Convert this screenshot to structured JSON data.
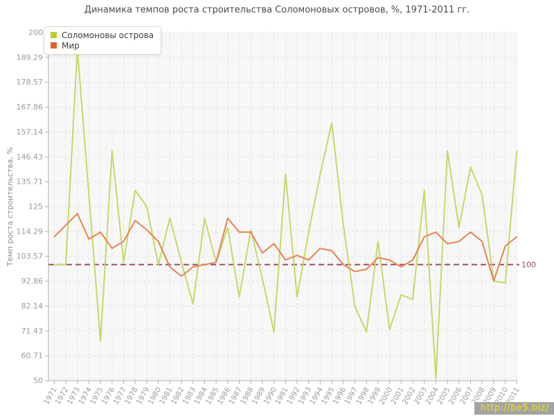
{
  "title": "Динамика темпов роста строительства Соломоновых островов, %, 1971-2011 гг.",
  "legend": {
    "items": [
      {
        "label": "Соломоновы острова",
        "color": "#b2d322"
      },
      {
        "label": "Мир",
        "color": "#e0622b"
      }
    ]
  },
  "y_axis": {
    "title": "Темп роста строительства, %",
    "ticks": [
      "50",
      "60.71",
      "71.43",
      "82.14",
      "92.86",
      "103.57",
      "114.29",
      "125",
      "135.71",
      "146.43",
      "157.14",
      "167.86",
      "178.57",
      "189.29",
      "200"
    ]
  },
  "x_axis": {
    "years": [
      "1971",
      "1972",
      "1973",
      "1974",
      "1975",
      "1976",
      "1977",
      "1978",
      "1979",
      "1980",
      "1981",
      "1982",
      "1983",
      "1984",
      "1985",
      "1986",
      "1987",
      "1988",
      "1989",
      "1990",
      "1991",
      "1992",
      "1993",
      "1994",
      "1995",
      "1996",
      "1997",
      "1998",
      "1999",
      "2000",
      "2001",
      "2002",
      "2003",
      "2004",
      "2005",
      "2006",
      "2007",
      "2008",
      "2009",
      "2010",
      "2011"
    ]
  },
  "reference_line": {
    "value": 100,
    "label": "100",
    "color": "#9e4a5a"
  },
  "watermark": "http://be5.biz/",
  "colors": {
    "solomon_line": "#c3d966",
    "world_line": "#e8824e",
    "grid": "#e1e1e1",
    "plot_bg": "#f7f7f7",
    "axis": "#b0b0b0",
    "tick_text": "#9b9b9b"
  },
  "chart_data": {
    "type": "line",
    "title": "Динамика темпов роста строительства Соломоновых островов, %, 1971-2011 гг.",
    "ylabel": "Темп роста строительства, %",
    "ylim": [
      50,
      200
    ],
    "grid": true,
    "legend_position": "top-left",
    "reference_value": 100,
    "x": [
      1971,
      1972,
      1973,
      1974,
      1975,
      1976,
      1977,
      1978,
      1979,
      1980,
      1981,
      1982,
      1983,
      1984,
      1985,
      1986,
      1987,
      1988,
      1989,
      1990,
      1991,
      1992,
      1993,
      1994,
      1995,
      1996,
      1997,
      1998,
      1999,
      2000,
      2001,
      2002,
      2003,
      2004,
      2005,
      2006,
      2007,
      2008,
      2009,
      2010,
      2011
    ],
    "series": [
      {
        "name": "Соломоновы острова",
        "color": "#c3d966",
        "values": [
          100,
          100,
          193,
          130,
          67,
          149,
          101,
          132,
          125,
          100,
          120,
          101,
          83,
          120,
          101,
          116,
          86,
          115,
          94,
          71,
          139,
          86,
          114,
          139,
          161,
          117,
          82,
          71,
          110,
          72,
          87,
          85,
          132,
          51,
          149,
          116,
          142,
          130,
          93,
          92,
          149
        ]
      },
      {
        "name": "Мир",
        "color": "#e8824e",
        "values": [
          112,
          117,
          122,
          111,
          114,
          107,
          110,
          119,
          115,
          110,
          99,
          95,
          99,
          100,
          101,
          120,
          114,
          114,
          105,
          109,
          102,
          104,
          102,
          107,
          106,
          100,
          97,
          98,
          103,
          102,
          99,
          102,
          112,
          114,
          109,
          110,
          114,
          110,
          93,
          108,
          112
        ]
      }
    ]
  }
}
